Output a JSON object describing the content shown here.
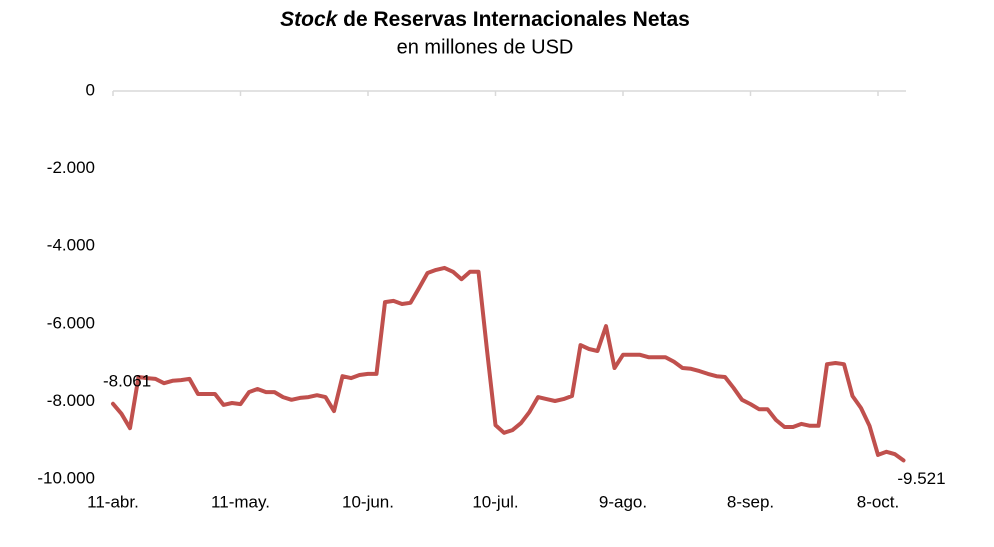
{
  "chart_data": {
    "type": "line",
    "title_emphasis": "Stock",
    "title": "de Reservas Internacionales Netas",
    "subtitle": "en millones de USD",
    "categories": [
      "11-abr.",
      null,
      null,
      null,
      null,
      null,
      null,
      null,
      null,
      null,
      null,
      null,
      null,
      null,
      null,
      "11-may.",
      null,
      null,
      null,
      null,
      null,
      null,
      null,
      null,
      null,
      null,
      null,
      null,
      null,
      null,
      "10-jun.",
      null,
      null,
      null,
      null,
      null,
      null,
      null,
      null,
      null,
      null,
      null,
      null,
      null,
      null,
      "10-jul.",
      null,
      null,
      null,
      null,
      null,
      null,
      null,
      null,
      null,
      null,
      null,
      null,
      null,
      null,
      "9-ago.",
      null,
      null,
      null,
      null,
      null,
      null,
      null,
      null,
      null,
      null,
      null,
      null,
      null,
      null,
      "8-sep.",
      null,
      null,
      null,
      null,
      null,
      null,
      null,
      null,
      null,
      null,
      null,
      null,
      null,
      null,
      "8-oct.",
      null,
      null,
      null
    ],
    "series": [
      {
        "name": null,
        "color": "#c0504d",
        "values": [
          -8061,
          -8320,
          -8690,
          -7370,
          -7400,
          -7420,
          -7530,
          -7470,
          -7450,
          -7420,
          -7810,
          -7810,
          -7810,
          -8090,
          -8040,
          -8070,
          -7760,
          -7680,
          -7760,
          -7760,
          -7890,
          -7960,
          -7910,
          -7890,
          -7840,
          -7890,
          -8250,
          -7350,
          -7400,
          -7320,
          -7290,
          -7290,
          -5440,
          -5410,
          -5490,
          -5460,
          -5080,
          -4690,
          -4610,
          -4560,
          -4660,
          -4850,
          -4660,
          -4660,
          -6680,
          -8610,
          -8810,
          -8740,
          -8560,
          -8270,
          -7890,
          -7940,
          -7990,
          -7940,
          -7860,
          -6550,
          -6650,
          -6700,
          -6060,
          -7140,
          -6800,
          -6800,
          -6800,
          -6860,
          -6860,
          -6860,
          -6980,
          -7140,
          -7160,
          -7220,
          -7290,
          -7350,
          -7370,
          -7650,
          -7960,
          -8070,
          -8200,
          -8200,
          -8480,
          -8660,
          -8660,
          -8580,
          -8630,
          -8630,
          -7040,
          -7010,
          -7040,
          -7860,
          -8170,
          -8630,
          -9380,
          -9300,
          -9360,
          -9521
        ],
        "value_labels": [
          "-8.061",
          null,
          null,
          null,
          null,
          null,
          null,
          null,
          null,
          null,
          null,
          null,
          null,
          null,
          null,
          null,
          null,
          null,
          null,
          null,
          null,
          null,
          null,
          null,
          null,
          null,
          null,
          null,
          null,
          null,
          null,
          null,
          null,
          null,
          null,
          null,
          null,
          null,
          null,
          null,
          null,
          null,
          null,
          null,
          null,
          null,
          null,
          null,
          null,
          null,
          null,
          null,
          null,
          null,
          null,
          null,
          null,
          null,
          null,
          null,
          null,
          null,
          null,
          null,
          null,
          null,
          null,
          null,
          null,
          null,
          null,
          null,
          null,
          null,
          null,
          null,
          null,
          null,
          null,
          null,
          null,
          null,
          null,
          null,
          null,
          null,
          null,
          null,
          null,
          null,
          null,
          null,
          null,
          "-9.521"
        ]
      }
    ],
    "ylim": [
      -10000,
      0
    ],
    "yticks": [
      {
        "value": 0,
        "label": "0"
      },
      {
        "value": -2000,
        "label": "-2.000"
      },
      {
        "value": -4000,
        "label": "-4.000"
      },
      {
        "value": -6000,
        "label": "-6.000"
      },
      {
        "value": -8000,
        "label": "-8.000"
      },
      {
        "value": -10000,
        "label": "-10.000"
      }
    ],
    "grid": false
  }
}
